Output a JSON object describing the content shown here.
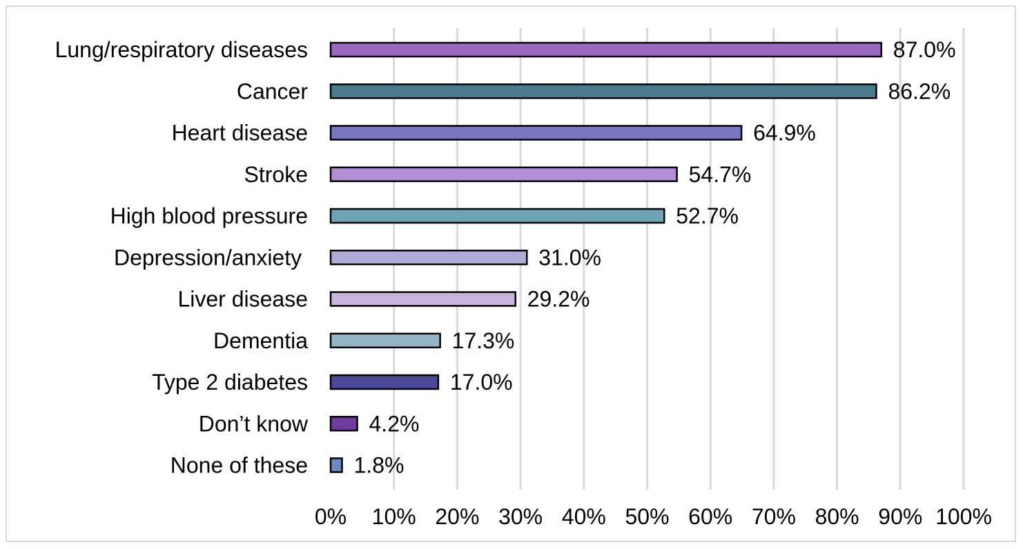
{
  "chart_data": {
    "type": "bar",
    "orientation": "horizontal",
    "title": "",
    "xlabel": "",
    "ylabel": "",
    "xlim": [
      0,
      100
    ],
    "grid": true,
    "legend": "none",
    "ticks": [
      "0%",
      "10%",
      "20%",
      "30%",
      "40%",
      "50%",
      "60%",
      "70%",
      "80%",
      "90%",
      "100%"
    ],
    "categories": [
      "Lung/respiratory diseases",
      "Cancer",
      "Heart disease",
      "Stroke",
      "High blood pressure",
      "Depression/anxiety ",
      "Liver disease",
      "Dementia",
      "Type 2 diabetes",
      "Don’t know",
      "None of these"
    ],
    "values": [
      87.0,
      86.2,
      64.9,
      54.7,
      52.7,
      31.0,
      29.2,
      17.3,
      17.0,
      4.2,
      1.8
    ],
    "value_labels": [
      "87.0%",
      "86.2%",
      "64.9%",
      "54.7%",
      "52.7%",
      "31.0%",
      "29.2%",
      "17.3%",
      "17.0%",
      "4.2%",
      "1.8%"
    ],
    "colors": [
      "#9b69c4",
      "#4a7a90",
      "#7b76bd",
      "#b38ed4",
      "#6fa4b7",
      "#acaad6",
      "#c7b5dd",
      "#93b6c6",
      "#4b4a99",
      "#6e3c9c",
      "#6e89c0"
    ],
    "bar_border_color": "#000000",
    "grid_color": "#d9d9d9"
  }
}
